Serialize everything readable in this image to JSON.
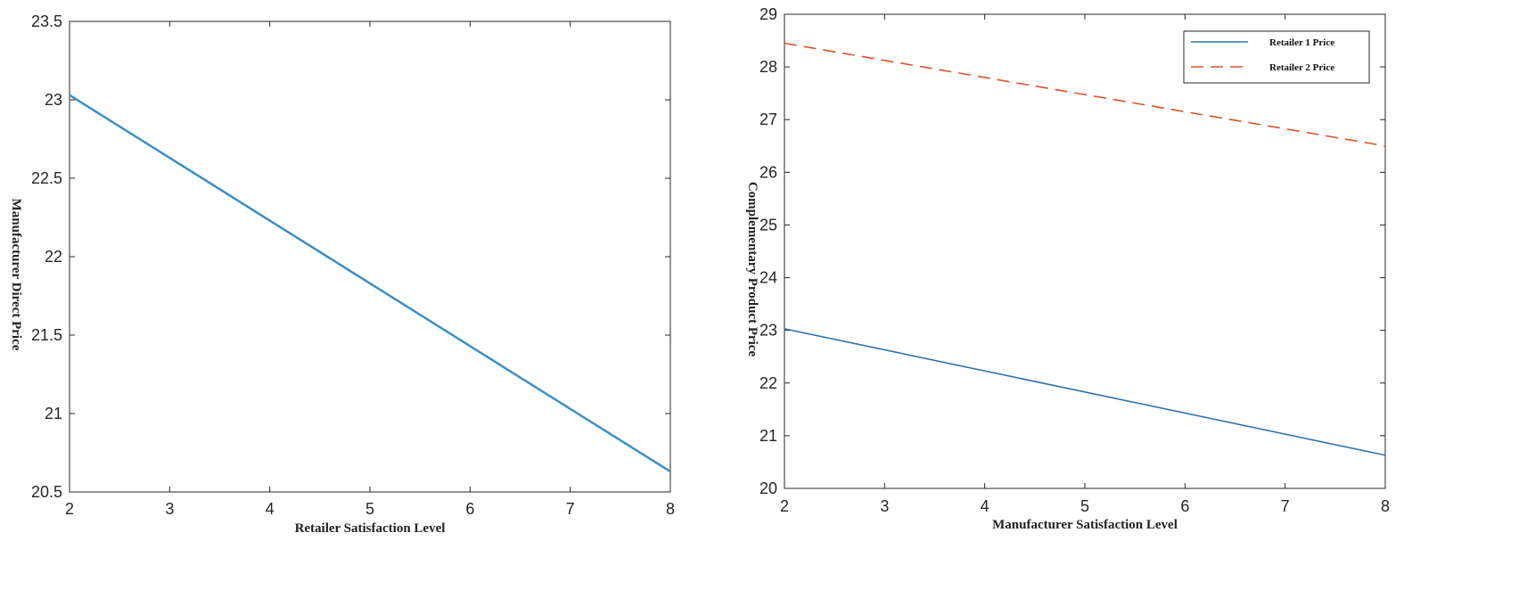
{
  "chart_data": [
    {
      "type": "line",
      "xlabel": "Retailer Satisfaction Level",
      "ylabel": "Manufacturer Direct Price",
      "xlim": [
        2,
        8
      ],
      "ylim": [
        20.5,
        23.5
      ],
      "xticks": [
        2,
        3,
        4,
        5,
        6,
        7,
        8
      ],
      "yticks": [
        20.5,
        21,
        21.5,
        22,
        22.5,
        23,
        23.5
      ],
      "grid": false,
      "legend": null,
      "series": [
        {
          "x": [
            2,
            8
          ],
          "y": [
            23.03,
            20.63
          ],
          "color": "#3a8fc7",
          "dash": "solid"
        }
      ]
    },
    {
      "type": "line",
      "xlabel": "Manufacturer Satisfaction Level",
      "ylabel": "Complementary Product Price",
      "xlim": [
        2,
        8
      ],
      "ylim": [
        20,
        29
      ],
      "xticks": [
        2,
        3,
        4,
        5,
        6,
        7,
        8
      ],
      "yticks": [
        20,
        21,
        22,
        23,
        24,
        25,
        26,
        27,
        28,
        29
      ],
      "grid": false,
      "legend": "top-right",
      "series": [
        {
          "name": "Retailer 1 Price",
          "x": [
            2,
            8
          ],
          "y": [
            23.03,
            20.63
          ],
          "color": "#2f73b0",
          "dash": "solid"
        },
        {
          "name": "Retailer 2 Price",
          "x": [
            2,
            8
          ],
          "y": [
            28.45,
            26.5
          ],
          "color": "#d9532a",
          "dash": "dashed"
        }
      ]
    }
  ]
}
